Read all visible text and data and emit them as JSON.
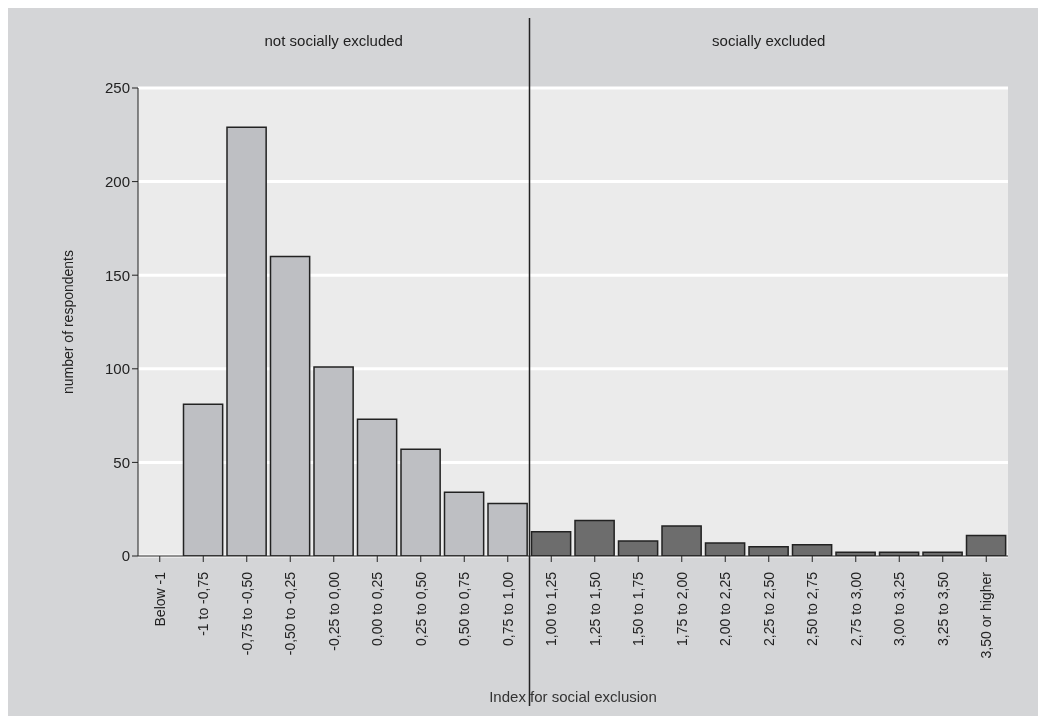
{
  "chart_data": {
    "type": "bar",
    "xlabel": "Index for social exclusion",
    "ylabel": "number of respondents",
    "categories": [
      "Below -1",
      "-1 to -0,75",
      "-0,75 to -0,50",
      "-0,50 to -0,25",
      "-0,25 to 0,00",
      "0,00 to 0,25",
      "0,25 to 0,50",
      "0,50 to 0,75",
      "0,75 to 1,00",
      "1,00 to 1,25",
      "1,25 to 1,50",
      "1,50 to 1,75",
      "1,75 to 2,00",
      "2,00 to 2,25",
      "2,25 to 2,50",
      "2,50 to 2,75",
      "2,75 to 3,00",
      "3,00 to 3,25",
      "3,25 to 3,50",
      "3,50 or higher"
    ],
    "values": [
      0,
      81,
      229,
      160,
      101,
      73,
      57,
      34,
      28,
      13,
      19,
      8,
      16,
      7,
      5,
      6,
      2,
      2,
      2,
      11
    ],
    "colors": [
      "#bebfc3",
      "#bebfc3",
      "#bebfc3",
      "#bebfc3",
      "#bebfc3",
      "#bebfc3",
      "#bebfc3",
      "#bebfc3",
      "#bebfc3",
      "#6d6d6d",
      "#6d6d6d",
      "#6d6d6d",
      "#6d6d6d",
      "#6d6d6d",
      "#6d6d6d",
      "#6d6d6d",
      "#6d6d6d",
      "#6d6d6d",
      "#6d6d6d",
      "#6d6d6d"
    ],
    "ylim": [
      0,
      250
    ],
    "yticks": [
      0,
      50,
      100,
      150,
      200,
      250
    ],
    "grid": "y",
    "ref_lines": [
      {
        "axis": "x",
        "value": "1,00 to 1,25"
      }
    ],
    "annotations": [
      "not socially excluded",
      "socially excluded"
    ]
  }
}
